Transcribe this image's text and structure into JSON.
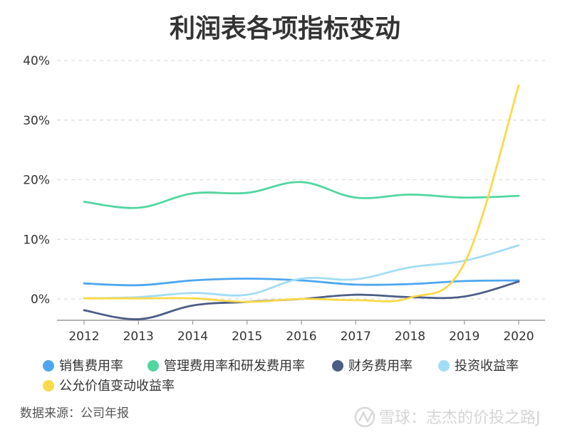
{
  "chart_data": {
    "type": "line",
    "title": "利润表各项指标变动",
    "xlabel": "",
    "ylabel": "",
    "x": [
      "2012",
      "2013",
      "2014",
      "2015",
      "2016",
      "2017",
      "2018",
      "2019",
      "2020"
    ],
    "ylim": [
      -4,
      40
    ],
    "yticks": [
      0,
      10,
      20,
      30,
      40
    ],
    "ytick_labels": [
      "0%",
      "10%",
      "20%",
      "30%",
      "40%"
    ],
    "grid": "horizontal dashed",
    "legend_position": "bottom",
    "series": [
      {
        "name": "销售费用率",
        "color": "#4ea6f0",
        "values": [
          2.6,
          2.3,
          3.1,
          3.4,
          3.1,
          2.4,
          2.5,
          3.0,
          3.1
        ]
      },
      {
        "name": "管理费用率和研发费用率",
        "color": "#52d6a0",
        "values": [
          16.3,
          15.3,
          17.7,
          17.8,
          19.6,
          17.0,
          17.5,
          17.0,
          17.3
        ]
      },
      {
        "name": "财务费用率",
        "color": "#4b5d86",
        "values": [
          -1.9,
          -3.4,
          -1.1,
          -0.5,
          0.0,
          0.7,
          0.3,
          0.4,
          2.9
        ]
      },
      {
        "name": "投资收益率",
        "color": "#a3dcf5",
        "values": [
          0.1,
          0.3,
          1.0,
          0.7,
          3.4,
          3.3,
          5.3,
          6.4,
          9.0
        ]
      },
      {
        "name": "公允价值变动收益率",
        "color": "#fad94a",
        "values": [
          0.1,
          0.1,
          0.1,
          -0.5,
          0.0,
          -0.2,
          0.2,
          6.0,
          35.8
        ]
      }
    ]
  },
  "source_note": "数据来源：公司年报",
  "watermark": "雪球：志杰的价投之路J"
}
